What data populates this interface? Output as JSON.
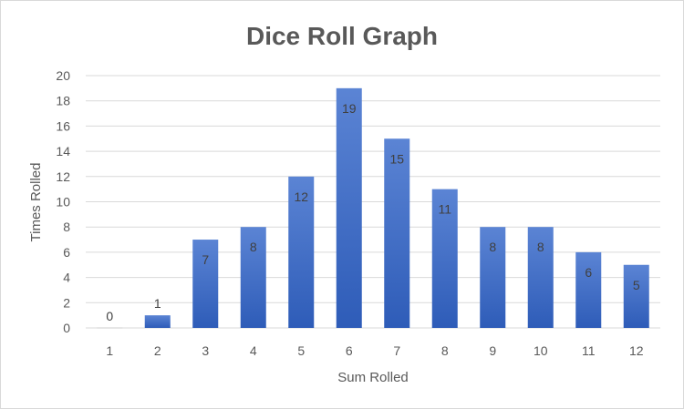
{
  "chart_data": {
    "type": "bar",
    "title": "Dice Roll Graph",
    "xlabel": "Sum Rolled",
    "ylabel": "Times Rolled",
    "categories": [
      "1",
      "2",
      "3",
      "4",
      "5",
      "6",
      "7",
      "8",
      "9",
      "10",
      "11",
      "12"
    ],
    "values": [
      0,
      1,
      7,
      8,
      12,
      19,
      15,
      11,
      8,
      8,
      6,
      5
    ],
    "ylim": [
      0,
      20
    ],
    "yticks": [
      0,
      2,
      4,
      6,
      8,
      10,
      12,
      14,
      16,
      18,
      20
    ],
    "grid": true,
    "legend": "none",
    "data_labels": true,
    "bar_color_top": "#5b84d4",
    "bar_color_bottom": "#2e5cb8"
  }
}
